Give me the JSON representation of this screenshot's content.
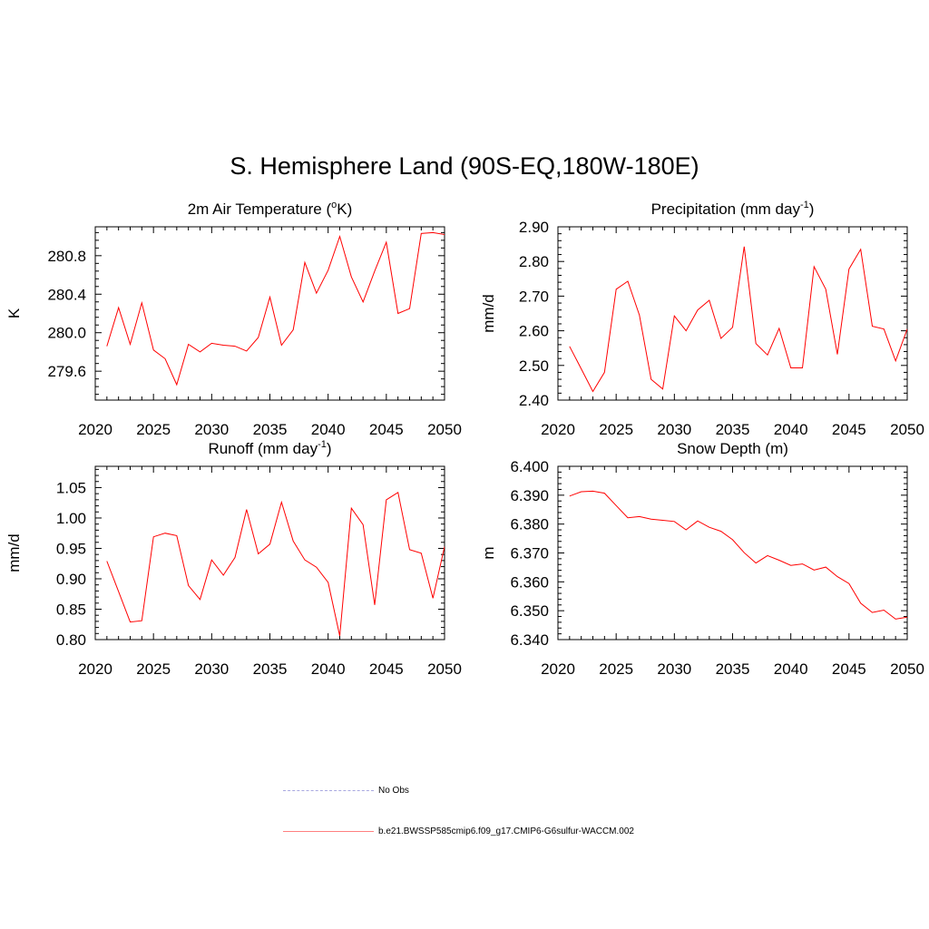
{
  "title": "S. Hemisphere Land (90S-EQ,180W-180E)",
  "legend": [
    {
      "label": "No Obs",
      "color": "#a8a8e0",
      "dash": true
    },
    {
      "label": "b.e21.BWSSP585cmip6.f09_g17.CMIP6-G6sulfur-WACCM.002",
      "color": "#ff0000",
      "dash": false
    }
  ],
  "chart_data": [
    {
      "type": "line",
      "title": "2m Air Temperature (°K)",
      "title_base": "2m Air Temperature (",
      "title_sup": "o",
      "title_tail": "K)",
      "ylabel": "K",
      "xlim": [
        2020,
        2050
      ],
      "ylim": [
        279.3,
        281.1
      ],
      "xticks": [
        "2020",
        "2025",
        "2030",
        "2035",
        "2040",
        "2045",
        "2050"
      ],
      "yticks": [
        "279.6",
        "280.0",
        "280.4",
        "280.8"
      ],
      "color": "#ff0000",
      "x": [
        2021,
        2022,
        2023,
        2024,
        2025,
        2026,
        2027,
        2028,
        2029,
        2030,
        2031,
        2032,
        2033,
        2034,
        2035,
        2036,
        2037,
        2038,
        2039,
        2040,
        2041,
        2042,
        2043,
        2044,
        2045,
        2046,
        2047,
        2048,
        2049,
        2050
      ],
      "y": [
        279.86,
        280.26,
        279.88,
        280.31,
        279.82,
        279.73,
        279.46,
        279.88,
        279.8,
        279.89,
        279.87,
        279.86,
        279.81,
        279.95,
        280.37,
        279.87,
        280.03,
        280.73,
        280.41,
        280.65,
        281.0,
        280.58,
        280.32,
        280.64,
        280.94,
        280.2,
        280.25,
        281.03,
        281.04,
        281.02
      ]
    },
    {
      "type": "line",
      "title": "Precipitation (mm day-1)",
      "title_base": "Precipitation (mm day",
      "title_sup": "-1",
      "title_tail": ")",
      "ylabel": "mm/d",
      "xlim": [
        2020,
        2050
      ],
      "ylim": [
        2.4,
        2.9
      ],
      "xticks": [
        "2020",
        "2025",
        "2030",
        "2035",
        "2040",
        "2045",
        "2050"
      ],
      "yticks": [
        "2.40",
        "2.50",
        "2.60",
        "2.70",
        "2.80",
        "2.90"
      ],
      "color": "#ff0000",
      "x": [
        2021,
        2022,
        2023,
        2024,
        2025,
        2026,
        2027,
        2028,
        2029,
        2030,
        2031,
        2032,
        2033,
        2034,
        2035,
        2036,
        2037,
        2038,
        2039,
        2040,
        2041,
        2042,
        2043,
        2044,
        2045,
        2046,
        2047,
        2048,
        2049,
        2050
      ],
      "y": [
        2.555,
        2.49,
        2.425,
        2.48,
        2.72,
        2.743,
        2.645,
        2.46,
        2.432,
        2.643,
        2.6,
        2.66,
        2.688,
        2.578,
        2.61,
        2.843,
        2.563,
        2.53,
        2.607,
        2.493,
        2.493,
        2.785,
        2.72,
        2.532,
        2.778,
        2.835,
        2.613,
        2.605,
        2.513,
        2.605
      ]
    },
    {
      "type": "line",
      "title": "Runoff (mm day-1)",
      "title_base": "Runoff (mm day",
      "title_sup": "-1",
      "title_tail": ")",
      "ylabel": "mm/d",
      "xlim": [
        2020,
        2050
      ],
      "ylim": [
        0.8,
        1.085
      ],
      "xticks": [
        "2020",
        "2025",
        "2030",
        "2035",
        "2040",
        "2045",
        "2050"
      ],
      "yticks": [
        "0.80",
        "0.85",
        "0.90",
        "0.95",
        "1.00",
        "1.05"
      ],
      "color": "#ff0000",
      "x": [
        2021,
        2022,
        2023,
        2024,
        2025,
        2026,
        2027,
        2028,
        2029,
        2030,
        2031,
        2032,
        2033,
        2034,
        2035,
        2036,
        2037,
        2038,
        2039,
        2040,
        2041,
        2042,
        2043,
        2044,
        2045,
        2046,
        2047,
        2048,
        2049,
        2050
      ],
      "y": [
        0.929,
        0.879,
        0.829,
        0.831,
        0.969,
        0.975,
        0.971,
        0.889,
        0.866,
        0.931,
        0.906,
        0.935,
        1.014,
        0.941,
        0.957,
        1.026,
        0.962,
        0.931,
        0.919,
        0.894,
        0.806,
        1.016,
        0.989,
        0.857,
        1.03,
        1.042,
        0.948,
        0.942,
        0.868,
        0.953
      ]
    },
    {
      "type": "line",
      "title": "Snow Depth (m)",
      "title_base": "Snow Depth (m)",
      "title_sup": "",
      "title_tail": "",
      "ylabel": "m",
      "xlim": [
        2020,
        2050
      ],
      "ylim": [
        6.34,
        6.4
      ],
      "xticks": [
        "2020",
        "2025",
        "2030",
        "2035",
        "2040",
        "2045",
        "2050"
      ],
      "yticks": [
        "6.340",
        "6.350",
        "6.360",
        "6.370",
        "6.380",
        "6.390",
        "6.400"
      ],
      "color": "#ff0000",
      "x": [
        2021,
        2022,
        2023,
        2024,
        2025,
        2026,
        2027,
        2028,
        2029,
        2030,
        2031,
        2032,
        2033,
        2034,
        2035,
        2036,
        2037,
        2038,
        2039,
        2040,
        2041,
        2042,
        2043,
        2044,
        2045,
        2046,
        2047,
        2048,
        2049,
        2050
      ],
      "y": [
        6.3897,
        6.3912,
        6.3914,
        6.3907,
        6.3864,
        6.3822,
        6.3826,
        6.3817,
        6.3813,
        6.3809,
        6.378,
        6.3811,
        6.3789,
        6.3775,
        6.3746,
        6.3701,
        6.3665,
        6.3691,
        6.3675,
        6.3657,
        6.3662,
        6.3641,
        6.3651,
        6.3618,
        6.3594,
        6.3526,
        6.3494,
        6.3502,
        6.3471,
        6.3478
      ]
    }
  ]
}
